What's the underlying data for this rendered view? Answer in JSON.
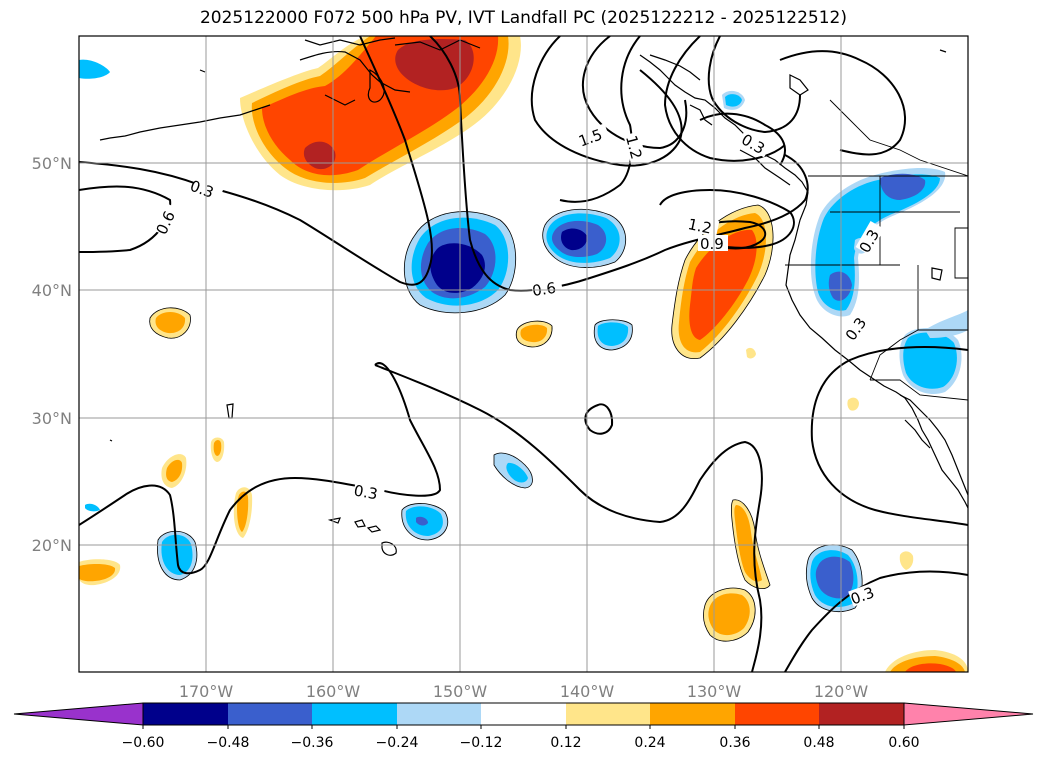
{
  "title": "2025122000 F072 500 hPa PV, IVT Landfall PC (2025122212 - 2025122512)",
  "longitude_labels": [
    "170°W",
    "160°W",
    "150°W",
    "140°W",
    "130°W",
    "120°W"
  ],
  "latitude_labels": [
    "50°N",
    "40°N",
    "30°N",
    "20°N"
  ],
  "contour_labels": [
    "0.3",
    "0.6",
    "1.5",
    "1.2",
    "0.3",
    "1.2",
    "0.9",
    "0.6",
    "0.3",
    "0.3",
    "0.3",
    "0.3"
  ],
  "colorbar": {
    "tick_labels": [
      "−0.60",
      "−0.48",
      "−0.36",
      "−0.24",
      "−0.12",
      "0.12",
      "0.24",
      "0.36",
      "0.48",
      "0.60"
    ],
    "colors": [
      "#9932CC",
      "#00008B",
      "#3A5FCD",
      "#00BFFF",
      "#ADD8F6",
      "#FFFFFF",
      "#FFE58A",
      "#FFA500",
      "#FF4500",
      "#B22222",
      "#FF82AB"
    ]
  },
  "map_extent": {
    "lon_min": -180,
    "lon_max": -110,
    "lat_min": 10,
    "lat_max": 60
  }
}
